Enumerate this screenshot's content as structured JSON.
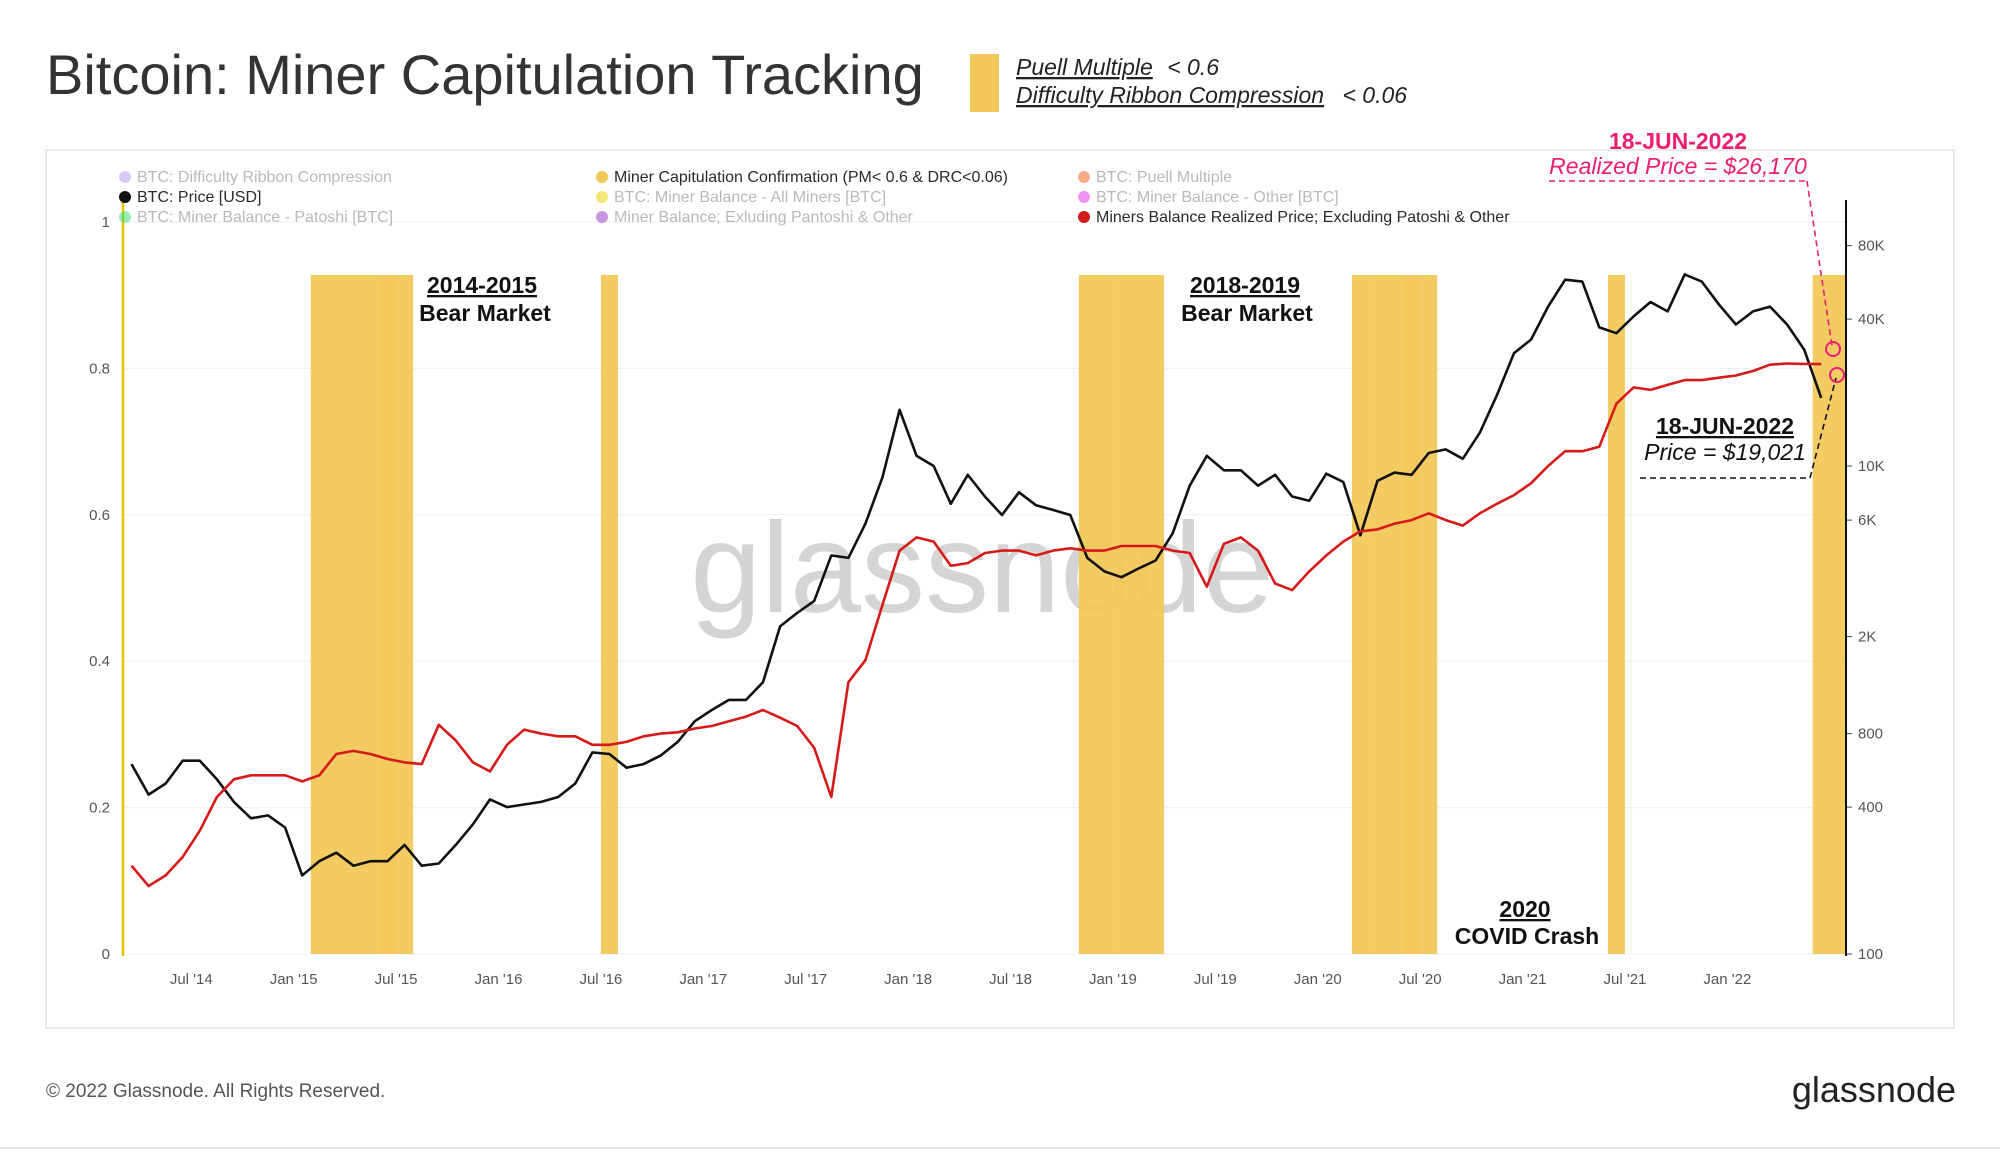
{
  "header": {
    "title": "Bitcoin: Miner Capitulation Tracking",
    "note_line1_label": "Puell Multiple",
    "note_line1_cond": "< 0.6",
    "note_line2_label": "Difficulty Ribbon Compression",
    "note_line2_cond": "< 0.06",
    "swatch_color": "#f2c85b"
  },
  "legend": [
    {
      "label": "BTC: Difficulty Ribbon Compression",
      "color": "#b89cf0",
      "active": false
    },
    {
      "label": "Miner Capitulation Confirmation (PM< 0.6 & DRC<0.06)",
      "color": "#f2c85b",
      "active": true
    },
    {
      "label": "BTC: Puell Multiple",
      "color": "#f26522",
      "active": false
    },
    {
      "label": "BTC: Price [USD]",
      "color": "#111111",
      "active": true
    },
    {
      "label": "BTC: Miner Balance - All Miners [BTC]",
      "color": "#e8d400",
      "active": false
    },
    {
      "label": "BTC: Miner Balance - Other [BTC]",
      "color": "#e23be6",
      "active": false
    },
    {
      "label": "BTC: Miner Balance - Patoshi [BTC]",
      "color": "#3ee07a",
      "active": false
    },
    {
      "label": "Miner Balance; Exluding Pantoshi & Other",
      "color": "#9a3fc7",
      "active": false
    },
    {
      "label": "Miners Balance Realized Price; Excluding Patoshi & Other",
      "color": "#d61a1a",
      "active": true
    }
  ],
  "annotations": {
    "bear_2014_year": "2014-2015",
    "bear_2014_label": "Bear Market",
    "bear_2018_year": "2018-2019",
    "bear_2018_label": "Bear Market",
    "covid_year": "2020",
    "covid_label": "COVID Crash",
    "realized_date": "18-JUN-2022",
    "realized_text": "Realized Price = $26,170",
    "price_date": "18-JUN-2022",
    "price_text": "Price = $19,021"
  },
  "watermark": "glassnode",
  "footer": {
    "copyright": "© 2022 Glassnode. All Rights Reserved.",
    "brand": "glassnode"
  },
  "chart_data": {
    "type": "line",
    "x_ticks": [
      "Jul '14",
      "Jan '15",
      "Jul '15",
      "Jan '16",
      "Jul '16",
      "Jan '17",
      "Jul '17",
      "Jan '18",
      "Jul '18",
      "Jan '19",
      "Jul '19",
      "Jan '20",
      "Jul '20",
      "Jan '21",
      "Jul '21",
      "Jan '22"
    ],
    "left_axis": {
      "ticks": [
        "0",
        "0.2",
        "0.4",
        "0.6",
        "0.8",
        "1"
      ],
      "ylim": [
        0,
        1
      ]
    },
    "right_axis": {
      "scale": "log",
      "ticks": [
        "100",
        "400",
        "800",
        "2K",
        "6K",
        "10K",
        "40K",
        "80K"
      ],
      "ylim": [
        100,
        100000
      ]
    },
    "capitulation_periods": [
      [
        "2015-02",
        "2015-06"
      ],
      [
        "2015-06",
        "2015-07"
      ],
      [
        "2016-07",
        "2016-07"
      ],
      [
        "2018-11",
        "2018-12"
      ],
      [
        "2019-01",
        "2019-03"
      ],
      [
        "2020-03",
        "2020-03"
      ],
      [
        "2020-04",
        "2020-04"
      ],
      [
        "2020-05",
        "2020-06"
      ],
      [
        "2020-06",
        "2020-06"
      ],
      [
        "2020-07",
        "2020-07"
      ],
      [
        "2021-06",
        "2021-06"
      ],
      [
        "2022-06",
        "2022-07"
      ]
    ],
    "series": [
      {
        "name": "BTC: Price [USD]",
        "axis": "right",
        "color": "#111111",
        "points": [
          [
            "2014-03",
            600
          ],
          [
            "2014-04",
            450
          ],
          [
            "2014-05",
            500
          ],
          [
            "2014-06",
            620
          ],
          [
            "2014-07",
            620
          ],
          [
            "2014-08",
            520
          ],
          [
            "2014-09",
            420
          ],
          [
            "2014-10",
            360
          ],
          [
            "2014-11",
            370
          ],
          [
            "2014-12",
            330
          ],
          [
            "2015-01",
            210
          ],
          [
            "2015-02",
            240
          ],
          [
            "2015-03",
            260
          ],
          [
            "2015-04",
            230
          ],
          [
            "2015-05",
            240
          ],
          [
            "2015-06",
            240
          ],
          [
            "2015-07",
            280
          ],
          [
            "2015-08",
            230
          ],
          [
            "2015-09",
            235
          ],
          [
            "2015-10",
            280
          ],
          [
            "2015-11",
            340
          ],
          [
            "2015-12",
            430
          ],
          [
            "2016-01",
            400
          ],
          [
            "2016-02",
            410
          ],
          [
            "2016-03",
            420
          ],
          [
            "2016-04",
            440
          ],
          [
            "2016-05",
            500
          ],
          [
            "2016-06",
            670
          ],
          [
            "2016-07",
            660
          ],
          [
            "2016-08",
            580
          ],
          [
            "2016-09",
            600
          ],
          [
            "2016-10",
            650
          ],
          [
            "2016-11",
            740
          ],
          [
            "2016-12",
            900
          ],
          [
            "2017-01",
            1000
          ],
          [
            "2017-02",
            1100
          ],
          [
            "2017-03",
            1100
          ],
          [
            "2017-04",
            1300
          ],
          [
            "2017-05",
            2200
          ],
          [
            "2017-06",
            2500
          ],
          [
            "2017-07",
            2800
          ],
          [
            "2017-08",
            4300
          ],
          [
            "2017-09",
            4200
          ],
          [
            "2017-10",
            5800
          ],
          [
            "2017-11",
            9000
          ],
          [
            "2017-12",
            17000
          ],
          [
            "2018-01",
            11000
          ],
          [
            "2018-02",
            10000
          ],
          [
            "2018-03",
            7000
          ],
          [
            "2018-04",
            9200
          ],
          [
            "2018-05",
            7500
          ],
          [
            "2018-06",
            6300
          ],
          [
            "2018-07",
            7800
          ],
          [
            "2018-08",
            6900
          ],
          [
            "2018-09",
            6600
          ],
          [
            "2018-10",
            6300
          ],
          [
            "2018-11",
            4200
          ],
          [
            "2018-12",
            3700
          ],
          [
            "2019-01",
            3500
          ],
          [
            "2019-02",
            3800
          ],
          [
            "2019-03",
            4100
          ],
          [
            "2019-04",
            5300
          ],
          [
            "2019-05",
            8300
          ],
          [
            "2019-06",
            11000
          ],
          [
            "2019-07",
            9600
          ],
          [
            "2019-08",
            9600
          ],
          [
            "2019-09",
            8300
          ],
          [
            "2019-10",
            9200
          ],
          [
            "2019-11",
            7500
          ],
          [
            "2019-12",
            7200
          ],
          [
            "2020-01",
            9300
          ],
          [
            "2020-02",
            8600
          ],
          [
            "2020-03",
            5200
          ],
          [
            "2020-04",
            8700
          ],
          [
            "2020-05",
            9400
          ],
          [
            "2020-06",
            9200
          ],
          [
            "2020-07",
            11300
          ],
          [
            "2020-08",
            11700
          ],
          [
            "2020-09",
            10700
          ],
          [
            "2020-10",
            13700
          ],
          [
            "2020-11",
            19500
          ],
          [
            "2020-12",
            29000
          ],
          [
            "2021-01",
            33000
          ],
          [
            "2021-02",
            45000
          ],
          [
            "2021-03",
            58000
          ],
          [
            "2021-04",
            57000
          ],
          [
            "2021-05",
            37000
          ],
          [
            "2021-06",
            35000
          ],
          [
            "2021-07",
            41000
          ],
          [
            "2021-08",
            47000
          ],
          [
            "2021-09",
            43000
          ],
          [
            "2021-10",
            61000
          ],
          [
            "2021-11",
            57000
          ],
          [
            "2021-12",
            46000
          ],
          [
            "2022-01",
            38000
          ],
          [
            "2022-02",
            43000
          ],
          [
            "2022-03",
            45000
          ],
          [
            "2022-04",
            38000
          ],
          [
            "2022-05",
            30000
          ],
          [
            "2022-06",
            19021
          ]
        ]
      },
      {
        "name": "Miners Balance Realized Price; Excluding Patoshi & Other",
        "axis": "right",
        "color": "#d61a1a",
        "points": [
          [
            "2014-03",
            230
          ],
          [
            "2014-04",
            190
          ],
          [
            "2014-05",
            210
          ],
          [
            "2014-06",
            250
          ],
          [
            "2014-07",
            320
          ],
          [
            "2014-08",
            440
          ],
          [
            "2014-09",
            520
          ],
          [
            "2014-10",
            540
          ],
          [
            "2014-11",
            540
          ],
          [
            "2014-12",
            540
          ],
          [
            "2015-01",
            510
          ],
          [
            "2015-02",
            540
          ],
          [
            "2015-03",
            660
          ],
          [
            "2015-04",
            680
          ],
          [
            "2015-05",
            660
          ],
          [
            "2015-06",
            630
          ],
          [
            "2015-07",
            610
          ],
          [
            "2015-08",
            600
          ],
          [
            "2015-09",
            870
          ],
          [
            "2015-10",
            750
          ],
          [
            "2015-11",
            610
          ],
          [
            "2015-12",
            560
          ],
          [
            "2016-01",
            720
          ],
          [
            "2016-02",
            830
          ],
          [
            "2016-03",
            800
          ],
          [
            "2016-04",
            780
          ],
          [
            "2016-05",
            780
          ],
          [
            "2016-06",
            720
          ],
          [
            "2016-07",
            720
          ],
          [
            "2016-08",
            740
          ],
          [
            "2016-09",
            780
          ],
          [
            "2016-10",
            800
          ],
          [
            "2016-11",
            810
          ],
          [
            "2016-12",
            840
          ],
          [
            "2017-01",
            860
          ],
          [
            "2017-02",
            900
          ],
          [
            "2017-03",
            940
          ],
          [
            "2017-04",
            1000
          ],
          [
            "2017-05",
            930
          ],
          [
            "2017-06",
            860
          ],
          [
            "2017-07",
            700
          ],
          [
            "2017-08",
            440
          ],
          [
            "2017-09",
            1300
          ],
          [
            "2017-10",
            1600
          ],
          [
            "2017-11",
            2700
          ],
          [
            "2017-12",
            4500
          ],
          [
            "2018-01",
            5100
          ],
          [
            "2018-02",
            4900
          ],
          [
            "2018-03",
            3900
          ],
          [
            "2018-04",
            4000
          ],
          [
            "2018-05",
            4400
          ],
          [
            "2018-06",
            4500
          ],
          [
            "2018-07",
            4500
          ],
          [
            "2018-08",
            4300
          ],
          [
            "2018-09",
            4500
          ],
          [
            "2018-10",
            4600
          ],
          [
            "2018-11",
            4500
          ],
          [
            "2018-12",
            4500
          ],
          [
            "2019-01",
            4700
          ],
          [
            "2019-02",
            4700
          ],
          [
            "2019-03",
            4700
          ],
          [
            "2019-04",
            4500
          ],
          [
            "2019-05",
            4400
          ],
          [
            "2019-06",
            3200
          ],
          [
            "2019-07",
            4800
          ],
          [
            "2019-08",
            5100
          ],
          [
            "2019-09",
            4500
          ],
          [
            "2019-10",
            3300
          ],
          [
            "2019-11",
            3100
          ],
          [
            "2019-12",
            3700
          ],
          [
            "2020-01",
            4300
          ],
          [
            "2020-02",
            4900
          ],
          [
            "2020-03",
            5400
          ],
          [
            "2020-04",
            5500
          ],
          [
            "2020-05",
            5800
          ],
          [
            "2020-06",
            6000
          ],
          [
            "2020-07",
            6400
          ],
          [
            "2020-08",
            6000
          ],
          [
            "2020-09",
            5700
          ],
          [
            "2020-10",
            6400
          ],
          [
            "2020-11",
            7000
          ],
          [
            "2020-12",
            7600
          ],
          [
            "2021-01",
            8500
          ],
          [
            "2021-02",
            10000
          ],
          [
            "2021-03",
            11500
          ],
          [
            "2021-04",
            11500
          ],
          [
            "2021-05",
            12000
          ],
          [
            "2021-06",
            18000
          ],
          [
            "2021-07",
            21000
          ],
          [
            "2021-08",
            20500
          ],
          [
            "2021-09",
            21500
          ],
          [
            "2021-10",
            22500
          ],
          [
            "2021-11",
            22500
          ],
          [
            "2021-12",
            23000
          ],
          [
            "2022-01",
            23500
          ],
          [
            "2022-02",
            24500
          ],
          [
            "2022-03",
            26000
          ],
          [
            "2022-04",
            26300
          ],
          [
            "2022-05",
            26200
          ],
          [
            "2022-06",
            26170
          ]
        ]
      }
    ]
  }
}
